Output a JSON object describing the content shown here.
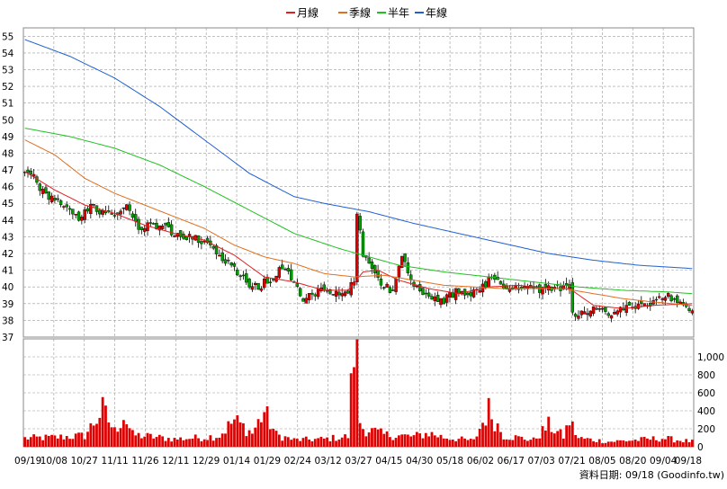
{
  "chart_data": [
    {
      "type": "candlestick",
      "legend": [
        {
          "label": "月線",
          "color": "#e02020"
        },
        {
          "label": "季線",
          "color": "#e07020"
        },
        {
          "label": "半年",
          "color": "#20c020"
        },
        {
          "label": "年線",
          "color": "#2060d0"
        }
      ],
      "legend_position": "top-center",
      "ylim": [
        37,
        55.5
      ],
      "yticks": [
        "55",
        "54",
        "53",
        "52",
        "51",
        "50",
        "49",
        "48",
        "47",
        "46",
        "45",
        "44",
        "43",
        "42",
        "41",
        "40",
        "39",
        "38",
        "37"
      ],
      "up_color": "#e00000",
      "down_color": "#00a000",
      "grid": true,
      "close_series": [
        [
          0,
          47.0
        ],
        [
          3,
          46.5
        ],
        [
          6,
          45.7
        ],
        [
          10,
          45.2
        ],
        [
          14,
          44.8
        ],
        [
          18,
          44.0
        ],
        [
          22,
          44.8
        ],
        [
          26,
          44.5
        ],
        [
          30,
          44.3
        ],
        [
          34,
          44.8
        ],
        [
          38,
          43.3
        ],
        [
          42,
          43.8
        ],
        [
          46,
          43.6
        ],
        [
          50,
          43.2
        ],
        [
          54,
          43.0
        ],
        [
          58,
          42.8
        ],
        [
          62,
          42.5
        ],
        [
          66,
          41.8
        ],
        [
          70,
          41.0
        ],
        [
          74,
          40.3
        ],
        [
          78,
          40.0
        ],
        [
          82,
          40.5
        ],
        [
          86,
          41.2
        ],
        [
          90,
          40.2
        ],
        [
          93,
          39.3
        ],
        [
          96,
          39.5
        ],
        [
          99,
          40.0
        ],
        [
          102,
          39.8
        ],
        [
          105,
          39.4
        ],
        [
          108,
          39.8
        ],
        [
          110,
          40.3
        ],
        [
          111,
          44.5
        ],
        [
          113,
          42.0
        ],
        [
          116,
          41.3
        ],
        [
          120,
          40.0
        ],
        [
          123,
          39.8
        ],
        [
          126,
          41.8
        ],
        [
          129,
          40.2
        ],
        [
          132,
          39.8
        ],
        [
          136,
          39.5
        ],
        [
          140,
          39.2
        ],
        [
          144,
          39.7
        ],
        [
          148,
          39.6
        ],
        [
          152,
          39.8
        ],
        [
          156,
          40.6
        ],
        [
          160,
          40.0
        ],
        [
          164,
          39.9
        ],
        [
          168,
          40.0
        ],
        [
          172,
          39.8
        ],
        [
          176,
          39.9
        ],
        [
          180,
          40.0
        ],
        [
          182,
          40.1
        ],
        [
          183,
          38.3
        ],
        [
          186,
          38.4
        ],
        [
          190,
          38.6
        ],
        [
          194,
          38.5
        ],
        [
          197,
          38.4
        ],
        [
          201,
          38.9
        ],
        [
          205,
          38.8
        ],
        [
          209,
          39.0
        ],
        [
          212,
          39.2
        ],
        [
          214,
          39.6
        ],
        [
          216,
          39.2
        ],
        [
          219,
          38.9
        ],
        [
          223,
          38.8
        ]
      ],
      "n": 224,
      "ma_series": [
        {
          "name": "月線",
          "points": [
            [
              0,
              46.9
            ],
            [
              10,
              45.8
            ],
            [
              20,
              44.9
            ],
            [
              30,
              44.4
            ],
            [
              40,
              43.7
            ],
            [
              50,
              43.2
            ],
            [
              60,
              42.8
            ],
            [
              70,
              41.9
            ],
            [
              80,
              40.6
            ],
            [
              90,
              40.3
            ],
            [
              100,
              39.8
            ],
            [
              108,
              39.8
            ],
            [
              113,
              40.9
            ],
            [
              118,
              41.0
            ],
            [
              125,
              40.4
            ],
            [
              135,
              39.9
            ],
            [
              145,
              39.6
            ],
            [
              155,
              40.0
            ],
            [
              165,
              40.1
            ],
            [
              175,
              39.9
            ],
            [
              182,
              39.9
            ],
            [
              190,
              38.9
            ],
            [
              200,
              38.7
            ],
            [
              210,
              38.9
            ],
            [
              223,
              39.0
            ]
          ]
        },
        {
          "name": "季線",
          "points": [
            [
              0,
              48.8
            ],
            [
              10,
              47.9
            ],
            [
              20,
              46.5
            ],
            [
              30,
              45.6
            ],
            [
              40,
              44.9
            ],
            [
              50,
              44.2
            ],
            [
              60,
              43.5
            ],
            [
              70,
              42.5
            ],
            [
              80,
              41.8
            ],
            [
              90,
              41.4
            ],
            [
              100,
              40.8
            ],
            [
              110,
              40.6
            ],
            [
              120,
              40.7
            ],
            [
              130,
              40.4
            ],
            [
              140,
              40.1
            ],
            [
              150,
              40.0
            ],
            [
              160,
              39.9
            ],
            [
              170,
              39.9
            ],
            [
              180,
              39.9
            ],
            [
              190,
              39.6
            ],
            [
              200,
              39.3
            ],
            [
              210,
              39.1
            ],
            [
              223,
              38.9
            ]
          ]
        },
        {
          "name": "半年",
          "points": [
            [
              0,
              49.5
            ],
            [
              15,
              49.0
            ],
            [
              30,
              48.3
            ],
            [
              45,
              47.3
            ],
            [
              60,
              46.0
            ],
            [
              75,
              44.6
            ],
            [
              90,
              43.2
            ],
            [
              105,
              42.3
            ],
            [
              115,
              41.8
            ],
            [
              125,
              41.3
            ],
            [
              140,
              40.9
            ],
            [
              155,
              40.6
            ],
            [
              170,
              40.3
            ],
            [
              185,
              40.0
            ],
            [
              200,
              39.8
            ],
            [
              215,
              39.7
            ],
            [
              223,
              39.6
            ]
          ]
        },
        {
          "name": "年線",
          "points": [
            [
              0,
              54.8
            ],
            [
              15,
              53.8
            ],
            [
              30,
              52.5
            ],
            [
              45,
              50.8
            ],
            [
              60,
              48.8
            ],
            [
              75,
              46.8
            ],
            [
              90,
              45.4
            ],
            [
              100,
              45.0
            ],
            [
              115,
              44.5
            ],
            [
              130,
              43.8
            ],
            [
              145,
              43.2
            ],
            [
              160,
              42.6
            ],
            [
              175,
              42.0
            ],
            [
              190,
              41.6
            ],
            [
              205,
              41.3
            ],
            [
              223,
              41.1
            ]
          ]
        }
      ]
    },
    {
      "type": "bar",
      "ylim": [
        0,
        1200
      ],
      "yticks": [
        "1,000",
        "800",
        "600",
        "400",
        "200",
        "0"
      ],
      "color": "#e00000",
      "grid": true,
      "volume_profile": [
        [
          0,
          100
        ],
        [
          10,
          110
        ],
        [
          20,
          130
        ],
        [
          26,
          430
        ],
        [
          30,
          180
        ],
        [
          33,
          370
        ],
        [
          36,
          140
        ],
        [
          50,
          90
        ],
        [
          60,
          110
        ],
        [
          65,
          130
        ],
        [
          70,
          310
        ],
        [
          76,
          160
        ],
        [
          80,
          410
        ],
        [
          84,
          140
        ],
        [
          90,
          80
        ],
        [
          100,
          90
        ],
        [
          108,
          120
        ],
        [
          110,
          1200
        ],
        [
          111,
          1000
        ],
        [
          112,
          300
        ],
        [
          113,
          220
        ],
        [
          120,
          140
        ],
        [
          130,
          120
        ],
        [
          135,
          160
        ],
        [
          140,
          110
        ],
        [
          150,
          70
        ],
        [
          155,
          430
        ],
        [
          160,
          130
        ],
        [
          170,
          80
        ],
        [
          175,
          250
        ],
        [
          180,
          120
        ],
        [
          182,
          300
        ],
        [
          185,
          100
        ],
        [
          195,
          60
        ],
        [
          205,
          80
        ],
        [
          213,
          100
        ],
        [
          223,
          60
        ]
      ]
    }
  ],
  "x_labels": [
    "09/19",
    "10/08",
    "10/27",
    "11/11",
    "11/26",
    "12/11",
    "12/29",
    "01/14",
    "01/29",
    "02/24",
    "03/12",
    "03/27",
    "04/15",
    "04/30",
    "05/18",
    "06/02",
    "06/17",
    "07/03",
    "07/21",
    "08/05",
    "08/20",
    "09/04",
    "09/18"
  ],
  "source_note": "資料日期: 09/18  (Goodinfo.tw)"
}
